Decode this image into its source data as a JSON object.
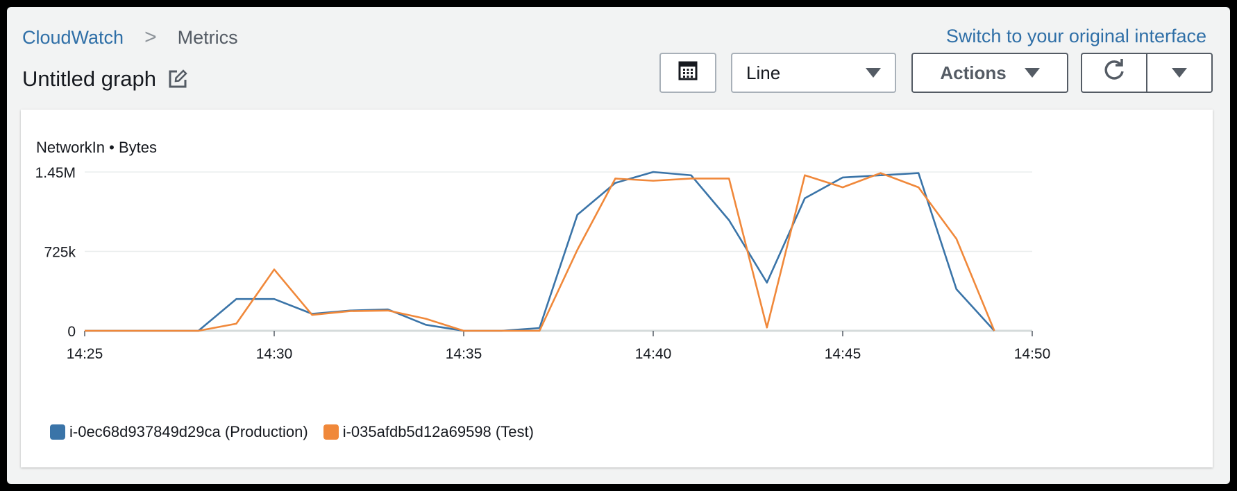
{
  "breadcrumb": {
    "root": "CloudWatch",
    "separator": ">",
    "current": "Metrics"
  },
  "header": {
    "switch_link": "Switch to your original interface",
    "graph_title": "Untitled graph"
  },
  "toolbar": {
    "chart_type": "Line",
    "actions_label": "Actions"
  },
  "icons": {
    "edit": "edit-icon",
    "grid": "table-icon",
    "refresh": "refresh-icon",
    "more": "caret-down-icon"
  },
  "colors": {
    "production": "#3a74a8",
    "test": "#f0883a",
    "link": "#2f6fa7"
  },
  "chart_data": {
    "type": "line",
    "title": "NetworkIn • Bytes",
    "x": [
      "14:25",
      "14:26",
      "14:27",
      "14:28",
      "14:29",
      "14:30",
      "14:31",
      "14:32",
      "14:33",
      "14:34",
      "14:35",
      "14:36",
      "14:37",
      "14:38",
      "14:39",
      "14:40",
      "14:41",
      "14:42",
      "14:43",
      "14:44",
      "14:45",
      "14:46",
      "14:47",
      "14:48",
      "14:49"
    ],
    "x_ticks": [
      "14:25",
      "14:30",
      "14:35",
      "14:40",
      "14:45",
      "14:50"
    ],
    "y_ticks": [
      "0",
      "725k",
      "1.45M"
    ],
    "ylim": [
      0,
      1450000
    ],
    "series": [
      {
        "name": "i-0ec68d937849d29ca (Production)",
        "color": "#3a74a8",
        "values": [
          0,
          0,
          0,
          0,
          290000,
          290000,
          155000,
          185000,
          195000,
          55000,
          0,
          0,
          25000,
          1060000,
          1350000,
          1450000,
          1420000,
          1010000,
          440000,
          1210000,
          1400000,
          1420000,
          1440000,
          380000,
          0
        ]
      },
      {
        "name": "i-035afdb5d12a69598 (Test)",
        "color": "#f0883a",
        "values": [
          0,
          0,
          0,
          0,
          65000,
          560000,
          145000,
          180000,
          185000,
          110000,
          0,
          0,
          0,
          740000,
          1390000,
          1370000,
          1390000,
          1390000,
          30000,
          1420000,
          1310000,
          1440000,
          1310000,
          840000,
          0
        ]
      }
    ]
  }
}
